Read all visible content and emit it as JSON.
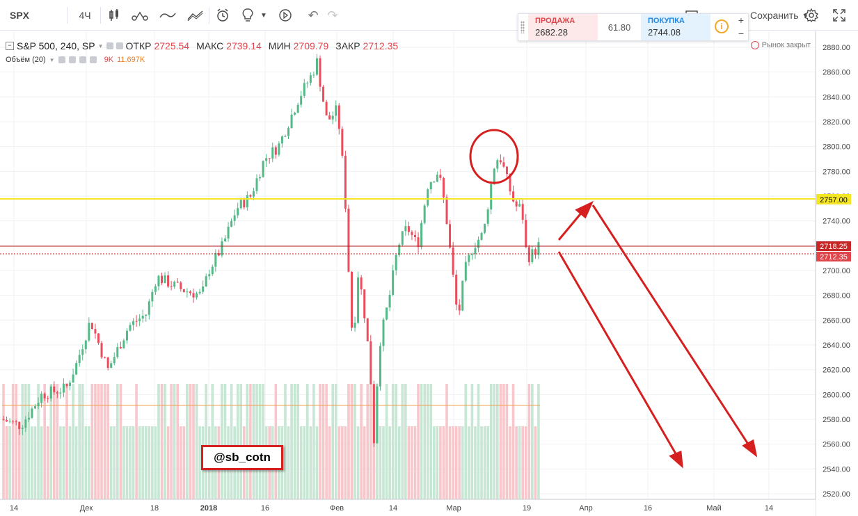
{
  "toolbar": {
    "symbol": "SPX",
    "interval": "4Ч",
    "save_label": "Сохранить",
    "icons": [
      "candles-icon",
      "indicators-icon",
      "compare-icon",
      "templates-icon",
      "alert-icon",
      "idea-icon",
      "replay-icon",
      "undo-icon",
      "redo-icon",
      "layout-icon",
      "settings-icon",
      "fullscreen-icon"
    ]
  },
  "legend": {
    "title": "S&P 500, 240, SP",
    "open_label": "ОТКР",
    "open_value": "2725.54",
    "high_label": "МАКС",
    "high_value": "2739.14",
    "low_label": "МИН",
    "low_value": "2709.79",
    "close_label": "ЗАКР",
    "close_value": "2712.35",
    "volume_title": "Объём (20)",
    "volume_value": "9K",
    "volume_ma": "11.697K"
  },
  "trade_widget": {
    "sell_label": "ПРОДАЖА",
    "sell_price": "2682.28",
    "spread": "61.80",
    "buy_label": "ПОКУПКА",
    "buy_price": "2744.08",
    "plus": "+",
    "minus": "−",
    "info": "i"
  },
  "status": {
    "market": "Рынок закрыт"
  },
  "watermark": "@sb_cotn",
  "colors": {
    "up": "#53b987",
    "down": "#eb4d5c",
    "up_vol": "#c8e6d4",
    "down_vol": "#f7c7cc",
    "yellow_line": "#f5e625",
    "red_line": "#b71c1c",
    "annotation": "#d61f1f"
  },
  "chart_data": {
    "type": "candlestick",
    "y_ticks": [
      "2880.00",
      "2860.00",
      "2840.00",
      "2820.00",
      "2800.00",
      "2780.00",
      "2760.00",
      "2740.00",
      "2720.00",
      "2700.00",
      "2680.00",
      "2660.00",
      "2640.00",
      "2620.00",
      "2600.00",
      "2580.00",
      "2560.00",
      "2540.00",
      "2520.00"
    ],
    "x_ticks": [
      "14",
      "Дек",
      "18",
      "2018",
      "16",
      "Фев",
      "14",
      "Мар",
      "19",
      "Апр",
      "16",
      "Май",
      "14"
    ],
    "price_labels": {
      "yellow": "2757.00",
      "last": "2718.25",
      "close": "2712.35"
    },
    "ylim": [
      2515,
      2885
    ]
  }
}
